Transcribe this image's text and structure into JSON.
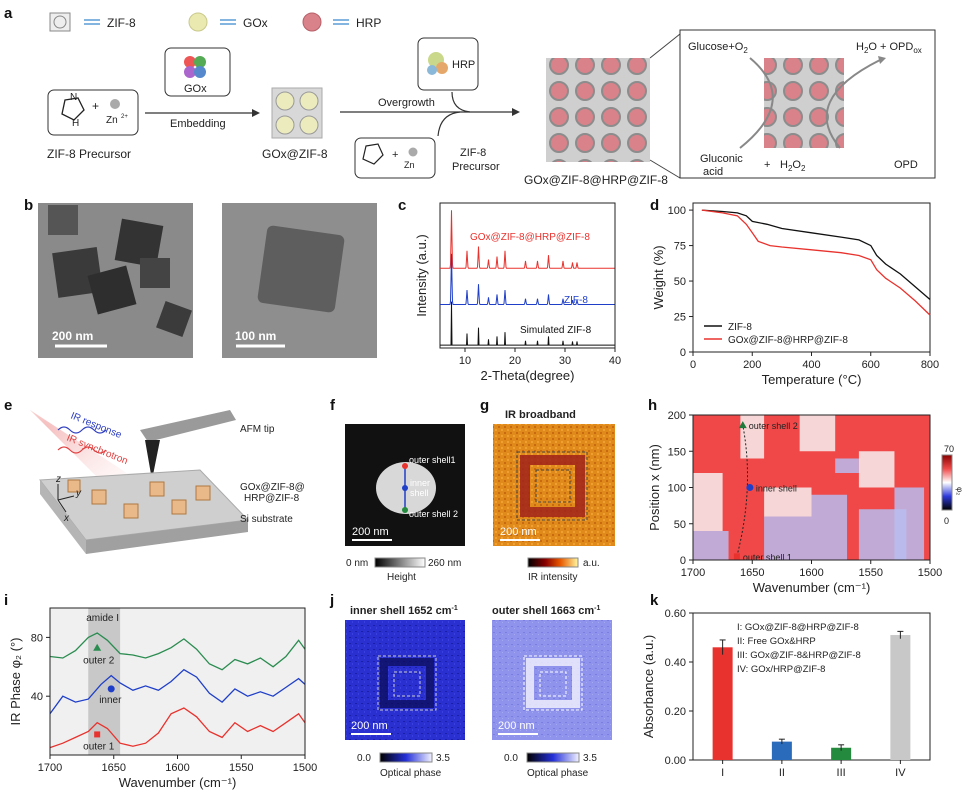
{
  "panel_letters": [
    "a",
    "b",
    "c",
    "d",
    "e",
    "f",
    "g",
    "h",
    "i",
    "j",
    "k"
  ],
  "panel_a": {
    "legend": [
      "ZIF-8",
      "GOx",
      "HRP"
    ],
    "precursor_label": "ZIF-8 Precursor",
    "zn_label": "Zn",
    "zn_charge": "2+",
    "embedding_box": "GOx",
    "embedding_label": "Embedding",
    "gox_zif_label": "GOx@ZIF-8",
    "overgrowth_label": "Overgrowth",
    "hrp_box": "HRP",
    "precursor2_label": [
      "ZIF-8",
      "Precursor"
    ],
    "final_label": "GOx@ZIF-8@HRP@ZIF-8",
    "cascade": {
      "glucose": "Glucose+O",
      "glucose_sub": "2",
      "product_top": "H",
      "product_top_sub1": "2",
      "product_top_mid": "O + OPD",
      "product_top_sub2": "ox",
      "gluconic": [
        "Gluconic",
        "acid"
      ],
      "plus": "+",
      "h2o2": "H",
      "h2o2_sub1": "2",
      "h2o2_o": "O",
      "h2o2_sub2": "2",
      "opd": "OPD"
    }
  },
  "panel_b": {
    "scale1": "200 nm",
    "scale2": "100 nm"
  },
  "chart_data": [
    {
      "panel": "c",
      "type": "line",
      "xlabel": "2-Theta(degree)",
      "ylabel": "Intensity (a.u.)",
      "xlim": [
        5,
        40
      ],
      "xticks": [
        10,
        20,
        30,
        40
      ],
      "series": [
        {
          "name": "GOx@ZIF-8@HRP@ZIF-8",
          "color": "#e8322d",
          "baseline": 0.55,
          "peaks": [
            [
              7.3,
              0.4
            ],
            [
              10.4,
              0.12
            ],
            [
              12.7,
              0.15
            ],
            [
              14.7,
              0.06
            ],
            [
              16.4,
              0.08
            ],
            [
              18.0,
              0.12
            ],
            [
              22.1,
              0.05
            ],
            [
              24.5,
              0.05
            ],
            [
              26.7,
              0.09
            ],
            [
              29.6,
              0.05
            ],
            [
              31.5,
              0.04
            ],
            [
              32.4,
              0.04
            ]
          ]
        },
        {
          "name": "ZIF-8",
          "color": "#1f3fc8",
          "baseline": 0.3,
          "peaks": [
            [
              7.3,
              0.35
            ],
            [
              10.4,
              0.1
            ],
            [
              12.7,
              0.14
            ],
            [
              14.7,
              0.05
            ],
            [
              16.4,
              0.07
            ],
            [
              18.0,
              0.1
            ],
            [
              22.1,
              0.04
            ],
            [
              24.5,
              0.04
            ],
            [
              26.7,
              0.07
            ],
            [
              29.6,
              0.04
            ],
            [
              31.5,
              0.03
            ],
            [
              32.4,
              0.03
            ]
          ]
        },
        {
          "name": "Simulated ZIF-8",
          "color": "#111111",
          "baseline": 0.02,
          "peaks": [
            [
              7.3,
              0.3
            ],
            [
              10.4,
              0.08
            ],
            [
              12.7,
              0.12
            ],
            [
              14.7,
              0.04
            ],
            [
              16.4,
              0.06
            ],
            [
              18.0,
              0.09
            ],
            [
              22.1,
              0.03
            ],
            [
              24.5,
              0.03
            ],
            [
              26.7,
              0.06
            ],
            [
              29.6,
              0.03
            ],
            [
              31.5,
              0.025
            ],
            [
              32.4,
              0.025
            ]
          ]
        }
      ]
    },
    {
      "panel": "d",
      "type": "line",
      "xlabel": "Temperature (°C)",
      "ylabel": "Weight (%)",
      "xlim": [
        0,
        800
      ],
      "ylim": [
        0,
        105
      ],
      "xticks": [
        0,
        200,
        400,
        600,
        800
      ],
      "yticks": [
        0,
        25,
        50,
        75,
        100
      ],
      "series": [
        {
          "name": "ZIF-8",
          "color": "#111111",
          "x": [
            30,
            100,
            150,
            180,
            200,
            250,
            300,
            400,
            500,
            560,
            600,
            620,
            650,
            700,
            750,
            800
          ],
          "y": [
            100,
            99,
            98,
            96,
            92,
            90,
            87,
            84,
            81,
            79,
            75,
            68,
            62,
            55,
            46,
            37
          ]
        },
        {
          "name": "GOx@ZIF-8@HRP@ZIF-8",
          "color": "#e8322d",
          "x": [
            30,
            100,
            150,
            180,
            200,
            220,
            260,
            300,
            400,
            500,
            560,
            600,
            620,
            650,
            700,
            750,
            800
          ],
          "y": [
            100,
            98,
            96,
            90,
            84,
            78,
            75,
            74,
            72,
            70,
            68,
            65,
            58,
            52,
            45,
            36,
            26
          ]
        }
      ]
    },
    {
      "panel": "h",
      "type": "heatmap",
      "xlabel": "Wavenumber (cm⁻¹)",
      "ylabel": "Position x (nm)",
      "xlim": [
        1700,
        1500
      ],
      "ylim": [
        0,
        200
      ],
      "xticks": [
        1700,
        1650,
        1600,
        1550,
        1500
      ],
      "yticks": [
        0,
        50,
        100,
        150,
        200
      ],
      "colorbar": {
        "min": 0,
        "max": 70,
        "label": "φ₂"
      },
      "annotations": [
        {
          "text": "outer shell 2",
          "x": 1658,
          "y": 186,
          "color": "#1d7a3a"
        },
        {
          "text": "inner shell",
          "x": 1652,
          "y": 100,
          "color": "#1f3fc8"
        },
        {
          "text": "outer shell 1",
          "x": 1663,
          "y": 5,
          "color": "#e8322d"
        }
      ]
    },
    {
      "panel": "i",
      "type": "line",
      "xlabel": "Wavenumber (cm⁻¹)",
      "ylabel": "IR Phase φ₂ (°)",
      "xlim": [
        1700,
        1500
      ],
      "ylim": [
        0,
        100
      ],
      "xticks": [
        1700,
        1650,
        1600,
        1550,
        1500
      ],
      "yticks": [
        40,
        80
      ],
      "shaded_band": [
        1670,
        1645
      ],
      "band_label": "amide  I",
      "series": [
        {
          "name": "outer 2",
          "color": "#2a8c50",
          "x": [
            1700,
            1690,
            1680,
            1670,
            1663,
            1655,
            1645,
            1635,
            1625,
            1615,
            1605,
            1595,
            1585,
            1575,
            1565,
            1555,
            1545,
            1535,
            1525,
            1515,
            1505,
            1500
          ],
          "y": [
            67,
            66,
            71,
            80,
            83,
            78,
            69,
            68,
            66,
            69,
            73,
            79,
            72,
            62,
            58,
            65,
            62,
            66,
            60,
            67,
            78,
            72
          ]
        },
        {
          "name": "inner",
          "color": "#1f3fc8",
          "x": [
            1700,
            1690,
            1680,
            1670,
            1660,
            1652,
            1645,
            1635,
            1625,
            1615,
            1605,
            1595,
            1585,
            1575,
            1565,
            1555,
            1545,
            1535,
            1525,
            1515,
            1505,
            1500
          ],
          "y": [
            28,
            40,
            36,
            38,
            48,
            54,
            49,
            44,
            47,
            44,
            50,
            58,
            53,
            42,
            36,
            45,
            40,
            43,
            40,
            46,
            52,
            48
          ]
        },
        {
          "name": "outer 1",
          "color": "#e8322d",
          "x": [
            1700,
            1690,
            1680,
            1670,
            1663,
            1655,
            1645,
            1635,
            1625,
            1615,
            1605,
            1595,
            1585,
            1575,
            1565,
            1555,
            1545,
            1535,
            1525,
            1515,
            1505,
            1500
          ],
          "y": [
            5,
            8,
            12,
            16,
            22,
            18,
            8,
            6,
            8,
            15,
            28,
            32,
            26,
            16,
            12,
            22,
            16,
            20,
            16,
            22,
            28,
            22
          ]
        }
      ],
      "markers": [
        {
          "series": "outer 2",
          "x": 1663,
          "y": 73,
          "shape": "triangle"
        },
        {
          "series": "inner",
          "x": 1652,
          "y": 45,
          "shape": "circle"
        },
        {
          "series": "outer 1",
          "x": 1663,
          "y": 14,
          "shape": "square"
        }
      ]
    },
    {
      "panel": "k",
      "type": "bar",
      "ylabel": "Absorbance (a.u.)",
      "ylim": [
        0,
        0.6
      ],
      "yticks": [
        0.0,
        0.2,
        0.4,
        0.6
      ],
      "categories": [
        "I",
        "II",
        "III",
        "IV"
      ],
      "values": [
        0.46,
        0.075,
        0.05,
        0.51
      ],
      "errors": [
        0.03,
        0.01,
        0.012,
        0.015
      ],
      "colors": [
        "#e8322d",
        "#2b6bbb",
        "#238a3e",
        "#c8c8c8"
      ],
      "legend": [
        "I: GOx@ZIF-8@HRP@ZIF-8",
        "II: Free GOx&HRP",
        "III: GOx@ZIF-8&HRP@ZIF-8",
        "IV: GOx/HRP@ZIF-8"
      ]
    }
  ],
  "panel_e": {
    "ir_response": "IR response",
    "ir_synchrotron": "IR synchrotron",
    "afm_tip": "AFM tip",
    "sample_label": [
      "GOx@ZIF-8@",
      "HRP@ZIF-8"
    ],
    "substrate": "Si substrate",
    "axes": [
      "z",
      "y",
      "x"
    ]
  },
  "panel_f": {
    "labels": [
      "outer shell1",
      "inner",
      "shell",
      "outer shell 2"
    ],
    "scale": "200 nm",
    "cbar_min": "0 nm",
    "cbar_max": "260 nm",
    "cbar_label": "Height"
  },
  "panel_g": {
    "title": "IR broadband",
    "scale": "200 nm",
    "cbar_label": "IR intensity",
    "cbar_unit": "a.u."
  },
  "panel_j": {
    "title_left": "inner shell 1652 cm",
    "title_right": "outer shell 1663 cm",
    "title_sup": "-1",
    "scale": "200 nm",
    "cbar_min": "0.0",
    "cbar_max": "3.5",
    "cbar_label": "Optical phase"
  }
}
